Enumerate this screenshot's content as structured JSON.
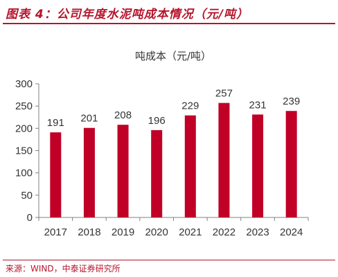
{
  "figure": {
    "title": "图表 4：公司年度水泥吨成本情况（元/吨）",
    "source": "来源：WIND，中泰证券研究所"
  },
  "colors": {
    "accent": "#b5152b",
    "bar": "#c00026",
    "axis": "#808080",
    "text": "#333333"
  },
  "chart_data": {
    "type": "bar",
    "title": "吨成本（元/吨）",
    "xlabel": "",
    "ylabel": "",
    "categories": [
      "2017",
      "2018",
      "2019",
      "2020",
      "2021",
      "2022",
      "2023",
      "2024"
    ],
    "values": [
      191,
      201,
      208,
      196,
      229,
      257,
      231,
      239
    ],
    "ylim": [
      0,
      300
    ],
    "yticks": [
      "0",
      "50",
      "100",
      "150",
      "200",
      "250",
      "300"
    ],
    "data_labels": [
      "191",
      "201",
      "208",
      "196",
      "229",
      "257",
      "231",
      "239"
    ],
    "grid": false,
    "legend": "none"
  }
}
